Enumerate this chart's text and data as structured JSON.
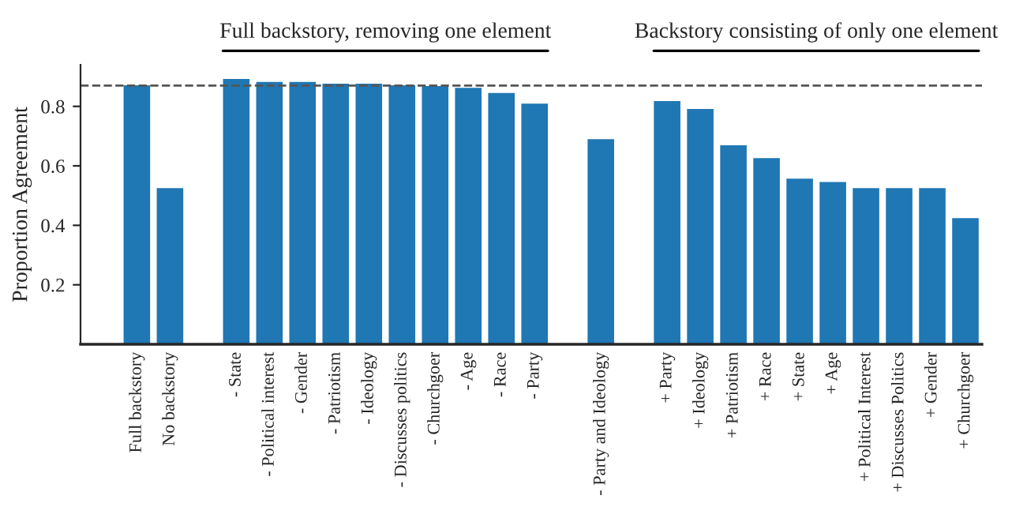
{
  "chart_data": {
    "type": "bar",
    "ylabel": "Proportion Agreement",
    "categories": [
      "Full backstory",
      "No backstory",
      null,
      "- State",
      "- Political interest",
      "- Gender",
      "- Patriotism",
      "- Ideology",
      "- Discusses politics",
      "- Churchgoer",
      "- Age",
      "- Race",
      "- Party",
      null,
      "- Party and Ideology",
      null,
      "+ Party",
      "+ Ideology",
      "+ Patriotism",
      "+ Race",
      "+ State",
      "+ Age",
      "+ Political Interest",
      "+ Discusses Politics",
      "+ Gender",
      "+ Churchgoer"
    ],
    "values": [
      0.871,
      0.525,
      null,
      0.892,
      0.882,
      0.882,
      0.876,
      0.876,
      0.871,
      0.868,
      0.862,
      0.845,
      0.809,
      null,
      0.69,
      null,
      0.818,
      0.791,
      0.669,
      0.626,
      0.557,
      0.546,
      0.525,
      0.525,
      0.525,
      0.424
    ],
    "color": "#1f77b4",
    "ylim": [
      0,
      0.94
    ],
    "yticks": [
      0.2,
      0.4,
      0.6,
      0.8
    ],
    "ref_lines": [
      {
        "axis": "y",
        "value": 0.87,
        "color": "#555555",
        "line_style": "dashed"
      }
    ],
    "annotations": [
      "Full backstory, removing one element",
      "Backstory consisting of only one element"
    ],
    "grid": false,
    "legend": false
  }
}
